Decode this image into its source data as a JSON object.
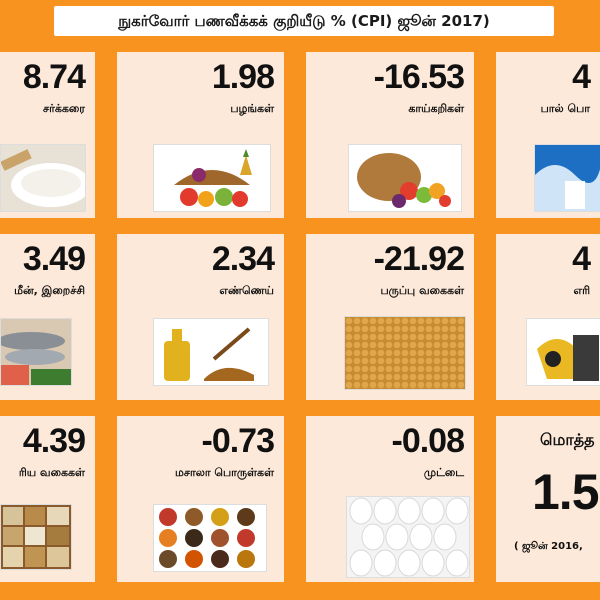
{
  "title": "நுகர்வோர் பணவீக்கக் குறியீடு % (CPI) ஜூன் 2017)",
  "chart_data": {
    "type": "table",
    "title": "நுகர்வோர் பணவீக்கக் குறியீடு % (CPI) ஜூன் 2017)",
    "items": [
      {
        "label": "சர்க்கரை",
        "value": "8.74",
        "icon": "sugar-icon"
      },
      {
        "label": "பழங்கள்",
        "value": "1.98",
        "icon": "fruits-icon"
      },
      {
        "label": "காய்கறிகள்",
        "value": "-16.53",
        "icon": "vegetables-icon"
      },
      {
        "label": "பால் பொ",
        "value": "4",
        "icon": "milk-icon"
      },
      {
        "label": "மீன், இறைச்சி",
        "value": "3.49",
        "icon": "fish-meat-icon"
      },
      {
        "label": "எண்ணெய்",
        "value": "2.34",
        "icon": "oil-icon"
      },
      {
        "label": "பருப்பு வகைகள்",
        "value": "-21.92",
        "icon": "pulses-icon"
      },
      {
        "label": "எரி",
        "value": "4",
        "icon": "fuel-icon"
      },
      {
        "label": "ரிய வகைகள்",
        "value": "4.39",
        "icon": "grains-icon"
      },
      {
        "label": "மசாலா பொருள்கள்",
        "value": "-0.73",
        "icon": "spices-icon"
      },
      {
        "label": "முட்டை",
        "value": "-0.08",
        "icon": "eggs-icon"
      }
    ],
    "total": {
      "label": "மொத்த",
      "value": "1.5",
      "note": "( ஜூன் 2016, "
    }
  },
  "colors": {
    "background": "#f7931e",
    "card": "#fde9d9"
  }
}
